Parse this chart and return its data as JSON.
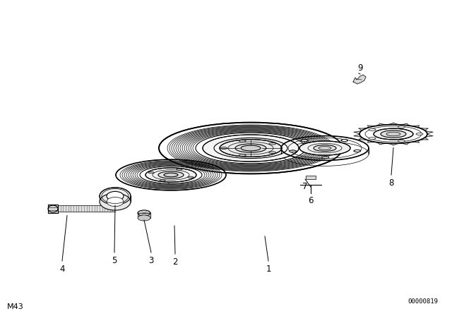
{
  "background_color": "#ffffff",
  "line_color": "#000000",
  "fig_width": 6.4,
  "fig_height": 4.48,
  "dpi": 100,
  "bottom_right_text": "00000819",
  "bottom_left_text": "M43"
}
